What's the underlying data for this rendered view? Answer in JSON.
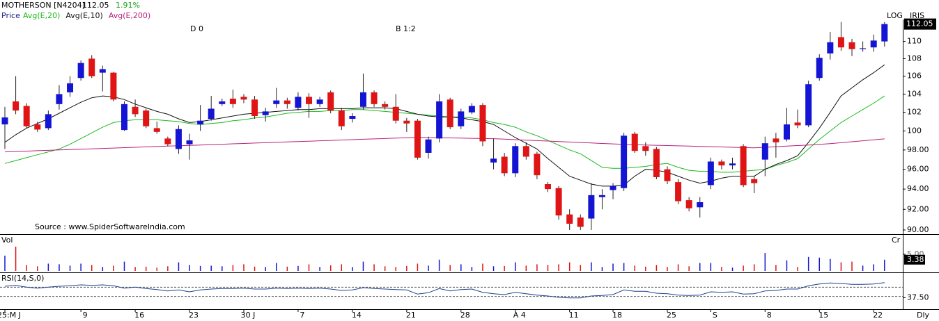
{
  "header": {
    "symbol": "MOTHERSON [N4204]",
    "price": "112.05",
    "change": "1.91%"
  },
  "annotations": [
    "D 0",
    "B 1:2"
  ],
  "source": "Source : www.SpiderSoftwareIndia.com",
  "labels": {
    "log": "LOG",
    "iris": "IRIS",
    "cr": "Cr",
    "period": "Dly"
  },
  "chart_data": [
    {
      "type": "candlestick",
      "price_label": "Price",
      "log": true,
      "up_color": "#1414d4",
      "down_color": "#e01414",
      "categories": [
        "25:M J",
        null,
        null,
        null,
        null,
        null,
        null,
        "9",
        null,
        null,
        null,
        null,
        "16",
        null,
        null,
        null,
        null,
        "23",
        null,
        null,
        null,
        null,
        "30 J",
        null,
        null,
        null,
        null,
        "7",
        null,
        null,
        null,
        null,
        "14",
        null,
        null,
        null,
        null,
        "21",
        null,
        null,
        null,
        null,
        "28",
        null,
        null,
        null,
        null,
        "A 4",
        null,
        null,
        null,
        null,
        "11",
        null,
        null,
        null,
        "18",
        null,
        null,
        null,
        null,
        "25",
        null,
        null,
        null,
        "S",
        null,
        null,
        null,
        null,
        "8",
        null,
        null,
        null,
        null,
        "15",
        null,
        null,
        null,
        null,
        "22",
        null
      ],
      "open": [
        100.7,
        103.2,
        102.7,
        100.7,
        100.3,
        102.9,
        104.2,
        105.8,
        108,
        106.4,
        106.4,
        100.1,
        102.6,
        102.2,
        100.3,
        99.2,
        98.1,
        98.6,
        100.7,
        101.3,
        102.9,
        103.5,
        103.7,
        103.4,
        101.7,
        102.9,
        103.3,
        102.5,
        103.7,
        102.9,
        104.2,
        102.2,
        101.3,
        102.6,
        104.2,
        102.9,
        102.6,
        101.1,
        101.1,
        97.7,
        99.2,
        103.4,
        100.5,
        102.0,
        102.8,
        96.7,
        97.3,
        95.6,
        98.4,
        97.6,
        94.5,
        94.1,
        91.5,
        91.2,
        91.1,
        93.2,
        93.9,
        94.1,
        99.7,
        98.4,
        98.1,
        96,
        94.7,
        92.9,
        92.2,
        94.4,
        96.8,
        96.4,
        98.4,
        95,
        97,
        99.2,
        99.1,
        100.9,
        100.6,
        105.8,
        108.6,
        110.5,
        109.9,
        109.1,
        109.3,
        110
      ],
      "high": [
        102.6,
        106,
        103,
        101,
        102.2,
        105,
        106,
        107.8,
        108.4,
        107.2,
        106.5,
        103.2,
        103.4,
        102.4,
        101,
        99.4,
        100.6,
        99.7,
        102.8,
        103.8,
        103.5,
        104.5,
        104,
        103.8,
        102.5,
        104.7,
        103.6,
        104.2,
        104.1,
        103.7,
        104.4,
        102.5,
        101.9,
        106.3,
        104.4,
        103.2,
        104,
        101.4,
        101.3,
        99.4,
        104,
        103.6,
        102.4,
        103,
        103,
        99.2,
        97.7,
        98.7,
        98.8,
        97.8,
        94.7,
        94.3,
        92,
        91.5,
        94.6,
        94,
        94.6,
        99.8,
        99.9,
        98.8,
        98.3,
        96.3,
        95,
        93.2,
        93.2,
        97.2,
        97,
        97.2,
        98.6,
        95.3,
        99.4,
        99.8,
        102.5,
        102.3,
        105.5,
        108.5,
        111.1,
        112.3,
        110.3,
        110,
        110.8,
        112.3
      ],
      "low": [
        98.1,
        101.8,
        100.3,
        99.9,
        100.1,
        102.3,
        103.7,
        105.5,
        105.8,
        104.3,
        103.2,
        100,
        101.5,
        100.3,
        99.7,
        98.4,
        97.6,
        97,
        100,
        101.1,
        102.7,
        102.5,
        103,
        101.3,
        101,
        102.5,
        102.4,
        102.2,
        101.4,
        102.6,
        101.9,
        100.1,
        100.9,
        102.3,
        102.6,
        102.3,
        100.8,
        99.9,
        97,
        97.1,
        98.8,
        100.2,
        100.2,
        101.8,
        98.4,
        96,
        95.3,
        95.2,
        97,
        95,
        93.7,
        91,
        90,
        90,
        90,
        92,
        93,
        93.8,
        97.7,
        97.4,
        95,
        94.5,
        92.5,
        91.8,
        91.2,
        94,
        96,
        96,
        94.2,
        93.6,
        95.3,
        97.2,
        98.9,
        100.3,
        100.4,
        105.5,
        107.9,
        108.9,
        108.3,
        108.8,
        108.8,
        109.4
      ],
      "close": [
        101.45,
        102.2,
        100.5,
        100.15,
        101.8,
        104,
        105.2,
        107.5,
        106,
        106.8,
        103.4,
        102.9,
        101.8,
        100.5,
        99.9,
        98.6,
        100.2,
        99,
        101.1,
        102.4,
        103.2,
        102.9,
        103.4,
        101.6,
        102.1,
        103.3,
        102.9,
        103.7,
        102.9,
        103.4,
        102.2,
        100.5,
        101.6,
        104.2,
        102.9,
        102.6,
        101.1,
        100.8,
        97.2,
        99.1,
        103.2,
        100.4,
        102.1,
        102.7,
        98.9,
        97.1,
        95.6,
        98.4,
        97.3,
        95.4,
        94,
        91.4,
        90.6,
        90.3,
        93.4,
        93.4,
        94.3,
        99.5,
        97.9,
        97.9,
        95.2,
        94.8,
        92.8,
        92.1,
        92.7,
        96.8,
        96.4,
        96.6,
        94.4,
        94.6,
        98.7,
        98.8,
        100.7,
        100.6,
        105.1,
        108.1,
        109.9,
        109.3,
        109.1,
        109.2,
        110.1,
        112.05
      ],
      "series": [
        {
          "name": "Avg(E,20)",
          "color": "#1cb81c",
          "values": [
            96.6,
            96.9,
            97.2,
            97.5,
            97.8,
            98.1,
            98.6,
            99.2,
            99.8,
            100.4,
            100.9,
            101.1,
            101.2,
            101.2,
            101.2,
            101.1,
            101.0,
            100.8,
            100.7,
            100.8,
            100.9,
            101.1,
            101.2,
            101.4,
            101.5,
            101.7,
            101.9,
            102.0,
            102.1,
            102.1,
            102.2,
            102.2,
            102.3,
            102.3,
            102.2,
            102.1,
            102.0,
            101.9,
            101.8,
            101.7,
            101.6,
            101.5,
            101.5,
            101.4,
            101.2,
            100.9,
            100.7,
            100.4,
            99.9,
            99.5,
            99.0,
            98.5,
            98.0,
            97.6,
            96.9,
            96.2,
            96.1,
            96.1,
            96.2,
            96.3,
            96.5,
            96.6,
            96.2,
            95.9,
            95.8,
            95.8,
            95.7,
            95.7,
            95.8,
            95.9,
            96.0,
            96.4,
            96.7,
            97.1,
            98.1,
            99.1,
            100.0,
            100.9,
            101.6,
            102.3,
            103.0,
            103.8
          ]
        },
        {
          "name": "Avg(E,10)",
          "color": "#101010",
          "values": [
            98.8,
            99.6,
            100.3,
            100.8,
            101.3,
            101.9,
            102.5,
            103.1,
            103.6,
            103.8,
            103.7,
            103.4,
            102.9,
            102.5,
            102.1,
            101.8,
            101.3,
            100.9,
            101.0,
            101.2,
            101.4,
            101.6,
            101.8,
            101.9,
            102.0,
            102.1,
            102.2,
            102.3,
            102.3,
            102.4,
            102.4,
            102.4,
            102.4,
            102.5,
            102.5,
            102.5,
            102.4,
            102.1,
            101.8,
            101.6,
            101.5,
            101.5,
            101.4,
            101.2,
            101.0,
            100.7,
            100.0,
            99.3,
            98.7,
            98.1,
            97.1,
            96.2,
            95.3,
            94.9,
            94.5,
            94.3,
            94.3,
            94.4,
            95.3,
            96.0,
            95.9,
            95.7,
            95.3,
            94.9,
            94.6,
            94.8,
            95.1,
            95.3,
            95.3,
            95.3,
            96.0,
            96.5,
            96.9,
            97.4,
            98.8,
            100.3,
            102.0,
            103.8,
            104.7,
            105.6,
            106.4,
            107.3
          ]
        },
        {
          "name": "Avg(E,200)",
          "color": "#b8207a",
          "values": [
            97.8,
            97.84,
            97.88,
            97.92,
            97.96,
            98.0,
            98.04,
            98.08,
            98.12,
            98.16,
            98.2,
            98.24,
            98.28,
            98.32,
            98.36,
            98.4,
            98.44,
            98.48,
            98.52,
            98.56,
            98.6,
            98.64,
            98.68,
            98.72,
            98.76,
            98.8,
            98.84,
            98.88,
            98.92,
            98.96,
            99.0,
            99.04,
            99.08,
            99.12,
            99.16,
            99.2,
            99.24,
            99.28,
            99.32,
            99.3,
            99.28,
            99.26,
            99.24,
            99.22,
            99.2,
            99.18,
            99.13,
            99.08,
            99.03,
            98.98,
            98.93,
            98.88,
            98.83,
            98.78,
            98.73,
            98.68,
            98.63,
            98.58,
            98.55,
            98.52,
            98.49,
            98.46,
            98.43,
            98.4,
            98.37,
            98.34,
            98.31,
            98.28,
            98.25,
            98.22,
            98.28,
            98.34,
            98.4,
            98.46,
            98.52,
            98.58,
            98.66,
            98.76,
            98.86,
            98.96,
            99.06,
            99.16
          ]
        }
      ],
      "ylim": [
        89.6,
        112.6
      ],
      "yticks": [
        {
          "value": 90,
          "label": "90.00"
        },
        {
          "value": 92,
          "label": "92.00"
        },
        {
          "value": 94,
          "label": "94.00"
        },
        {
          "value": 96,
          "label": "96.00"
        },
        {
          "value": 98,
          "label": "98.00"
        },
        100,
        102,
        104,
        106,
        108,
        110
      ]
    },
    {
      "type": "bar",
      "title": "Vol",
      "values": [
        4.6,
        7.3,
        1.8,
        1.4,
        2.2,
        2.0,
        1.6,
        2.2,
        1.8,
        1.2,
        1.6,
        2.8,
        1.2,
        1.3,
        1.0,
        1.4,
        2.6,
        1.8,
        1.5,
        1.6,
        1.4,
        1.8,
        2.0,
        1.3,
        1.2,
        2.4,
        1.3,
        1.5,
        2.0,
        1.2,
        1.7,
        2.0,
        1.2,
        2.8,
        2.0,
        1.4,
        1.2,
        1.5,
        2.2,
        1.6,
        3.4,
        1.8,
        2.0,
        1.2,
        2.2,
        1.4,
        1.5,
        2.6,
        1.6,
        2.0,
        1.8,
        2.0,
        2.6,
        1.8,
        2.6,
        1.2,
        2.2,
        2.4,
        1.6,
        1.3,
        1.8,
        1.2,
        2.0,
        1.4,
        2.4,
        2.4,
        1.2,
        1.0,
        1.6,
        2.0,
        5.4,
        1.8,
        3.2,
        1.2,
        4.2,
        4.0,
        3.6,
        2.6,
        2.8,
        1.6,
        2.0,
        3.38
      ],
      "last_label": "3.38",
      "ylim": [
        0,
        10
      ],
      "yticks": [
        {
          "value": 5,
          "label": "5.00"
        }
      ]
    },
    {
      "type": "line",
      "title": "RSI(14,S,0)",
      "color": "#1c3f8f",
      "values": [
        62,
        64,
        60,
        58,
        60,
        62,
        63,
        65,
        64,
        65,
        63,
        58,
        60,
        57,
        55,
        52,
        54,
        50,
        54,
        56,
        57,
        57,
        58,
        56,
        56,
        58,
        57,
        58,
        57,
        58,
        56,
        53,
        54,
        59,
        57,
        56,
        55,
        54,
        45,
        48,
        57,
        52,
        55,
        56,
        49,
        46,
        44,
        49,
        46,
        43,
        41,
        38,
        37,
        37,
        41,
        42,
        44,
        54,
        51,
        51,
        47,
        46,
        43,
        42,
        43,
        50,
        49,
        50,
        45,
        46,
        52,
        53,
        56,
        56,
        63,
        67,
        69,
        68,
        66,
        66,
        67,
        70
      ],
      "ref_lines": [
        40,
        60
      ],
      "ylim": [
        20,
        80
      ],
      "yticks": [
        {
          "value": 37.5,
          "label": "37.50"
        }
      ]
    }
  ]
}
